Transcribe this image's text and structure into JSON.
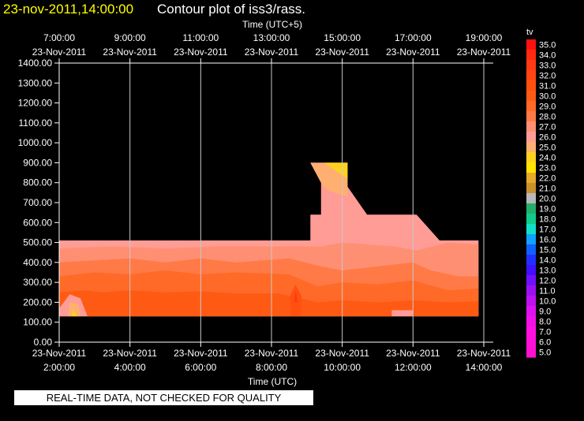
{
  "header": {
    "datetime": "23-nov-2011,14:00:00",
    "title": "Contour plot of iss3/rass."
  },
  "footer": {
    "notice": "REAL-TIME DATA, NOT CHECKED FOR QUALITY"
  },
  "colors": {
    "background": "#000000",
    "header_date": "#ffff00",
    "text": "#ffffff",
    "grid": "#c8c8c8"
  },
  "chart_data": {
    "type": "heatmap",
    "title": "Contour plot of iss3/rass.",
    "xlabel_top": "Time (UTC+5)",
    "xlabel": "Time (UTC)",
    "ylabel": "",
    "ylim": [
      0,
      1400
    ],
    "xlim_utc_hours": [
      2,
      14
    ],
    "y_ticks": [
      "0.00",
      "100.00",
      "200.00",
      "300.00",
      "400.00",
      "500.00",
      "600.00",
      "700.00",
      "800.00",
      "900.00",
      "1000.00",
      "1100.00",
      "1200.00",
      "1300.00",
      "1400.00"
    ],
    "x_ticks_bottom": [
      {
        "hour": 2,
        "date": "23-Nov-2011",
        "time": "2:00:00"
      },
      {
        "hour": 4,
        "date": "23-Nov-2011",
        "time": "4:00:00"
      },
      {
        "hour": 6,
        "date": "23-Nov-2011",
        "time": "6:00:00"
      },
      {
        "hour": 8,
        "date": "23-Nov-2011",
        "time": "8:00:00"
      },
      {
        "hour": 10,
        "date": "23-Nov-2011",
        "time": "10:00:00"
      },
      {
        "hour": 12,
        "date": "23-Nov-2011",
        "time": "12:00:00"
      },
      {
        "hour": 14,
        "date": "23-Nov-2011",
        "time": "14:00:00"
      }
    ],
    "x_ticks_top": [
      {
        "hour": 2,
        "time": "7:00:00",
        "date": "23-Nov-2011"
      },
      {
        "hour": 4,
        "time": "9:00:00",
        "date": "23-Nov-2011"
      },
      {
        "hour": 6,
        "time": "11:00:00",
        "date": "23-Nov-2011"
      },
      {
        "hour": 8,
        "time": "13:00:00",
        "date": "23-Nov-2011"
      },
      {
        "hour": 10,
        "time": "15:00:00",
        "date": "23-Nov-2011"
      },
      {
        "hour": 12,
        "time": "17:00:00",
        "date": "23-Nov-2011"
      },
      {
        "hour": 14,
        "time": "19:00:00",
        "date": "23-Nov-2011"
      }
    ],
    "legend": {
      "title": "tv",
      "placement": "right",
      "levels": [
        {
          "label": "35.0",
          "color": "#ff1010"
        },
        {
          "label": "34.0",
          "color": "#ff2a10"
        },
        {
          "label": "33.0",
          "color": "#ff3a12"
        },
        {
          "label": "32.0",
          "color": "#ff4612"
        },
        {
          "label": "31.0",
          "color": "#ff5012"
        },
        {
          "label": "30.0",
          "color": "#ff5a14"
        },
        {
          "label": "29.0",
          "color": "#ff6a28"
        },
        {
          "label": "28.0",
          "color": "#ff7a46"
        },
        {
          "label": "27.0",
          "color": "#ff8f72"
        },
        {
          "label": "26.0",
          "color": "#ff9c96"
        },
        {
          "label": "25.0",
          "color": "#ffb070"
        },
        {
          "label": "24.0",
          "color": "#ffd21e"
        },
        {
          "label": "23.0",
          "color": "#ffe400"
        },
        {
          "label": "22.0",
          "color": "#e8a82a"
        },
        {
          "label": "21.0",
          "color": "#c8922a"
        },
        {
          "label": "20.0",
          "color": "#b8b8b8"
        },
        {
          "label": "19.0",
          "color": "#22b06a"
        },
        {
          "label": "18.0",
          "color": "#10cc8c"
        },
        {
          "label": "17.0",
          "color": "#10e0c8"
        },
        {
          "label": "16.0",
          "color": "#10a0ff"
        },
        {
          "label": "15.0",
          "color": "#1060ff"
        },
        {
          "label": "14.0",
          "color": "#2030ff"
        },
        {
          "label": "13.0",
          "color": "#4010ff"
        },
        {
          "label": "12.0",
          "color": "#7010ff"
        },
        {
          "label": "11.0",
          "color": "#9a10f0"
        },
        {
          "label": "10.0",
          "color": "#c010f0"
        },
        {
          "label": "9.0",
          "color": "#e010f0"
        },
        {
          "label": "8.0",
          "color": "#f010e8"
        },
        {
          "label": "7.0",
          "color": "#ff10e0"
        },
        {
          "label": "6.0",
          "color": "#ff10d8"
        },
        {
          "label": "5.0",
          "color": "#ff10d0"
        }
      ]
    },
    "regions": [
      {
        "value": 26.0,
        "color": "#ff9c96",
        "points": [
          [
            2,
            510
          ],
          [
            9.1,
            510
          ],
          [
            9.1,
            640
          ],
          [
            9.4,
            640
          ],
          [
            9.4,
            800
          ],
          [
            9.1,
            900
          ],
          [
            10.15,
            900
          ],
          [
            10.15,
            780
          ],
          [
            10.7,
            640
          ],
          [
            12.1,
            640
          ],
          [
            12.75,
            510
          ],
          [
            13.85,
            510
          ],
          [
            13.85,
            130
          ],
          [
            2,
            130
          ]
        ]
      },
      {
        "value": 27.0,
        "color": "#ff8f72",
        "points": [
          [
            2,
            470
          ],
          [
            3.5,
            480
          ],
          [
            5,
            470
          ],
          [
            6.5,
            480
          ],
          [
            8.5,
            480
          ],
          [
            9.4,
            480
          ],
          [
            10,
            500
          ],
          [
            11.5,
            480
          ],
          [
            12.1,
            460
          ],
          [
            13,
            500
          ],
          [
            13.85,
            490
          ],
          [
            13.85,
            130
          ],
          [
            2,
            130
          ]
        ]
      },
      {
        "value": 28.0,
        "color": "#ff7a46",
        "points": [
          [
            2,
            400
          ],
          [
            3,
            410
          ],
          [
            4,
            420
          ],
          [
            5,
            400
          ],
          [
            6,
            420
          ],
          [
            7,
            400
          ],
          [
            8.5,
            420
          ],
          [
            9.4,
            380
          ],
          [
            10,
            360
          ],
          [
            11,
            380
          ],
          [
            12,
            400
          ],
          [
            12.5,
            360
          ],
          [
            13.3,
            330
          ],
          [
            13.85,
            330
          ],
          [
            13.85,
            130
          ],
          [
            2,
            130
          ]
        ]
      },
      {
        "value": 29.0,
        "color": "#ff6a28",
        "points": [
          [
            2,
            330
          ],
          [
            3,
            350
          ],
          [
            4,
            340
          ],
          [
            5,
            360
          ],
          [
            6,
            340
          ],
          [
            7,
            350
          ],
          [
            8.5,
            340
          ],
          [
            9.3,
            280
          ],
          [
            10,
            300
          ],
          [
            11,
            290
          ],
          [
            12,
            310
          ],
          [
            13,
            260
          ],
          [
            13.85,
            270
          ],
          [
            13.85,
            130
          ],
          [
            2,
            130
          ]
        ]
      },
      {
        "value": 30.0,
        "color": "#ff5a14",
        "points": [
          [
            2,
            250
          ],
          [
            2.8,
            260
          ],
          [
            3.2,
            250
          ],
          [
            4,
            260
          ],
          [
            5,
            250
          ],
          [
            6,
            255
          ],
          [
            7,
            245
          ],
          [
            8.2,
            245
          ],
          [
            9.3,
            200
          ],
          [
            10,
            210
          ],
          [
            11,
            200
          ],
          [
            12,
            210
          ],
          [
            13,
            200
          ],
          [
            13.85,
            205
          ],
          [
            13.85,
            130
          ],
          [
            2,
            130
          ]
        ]
      },
      {
        "value": 31.0,
        "color": "#ff5012",
        "points": [
          [
            8.55,
            130
          ],
          [
            8.52,
            230
          ],
          [
            8.68,
            290
          ],
          [
            8.85,
            230
          ],
          [
            8.82,
            130
          ]
        ]
      },
      {
        "value": 33.0,
        "color": "#ff3a12",
        "points": [
          [
            8.64,
            200
          ],
          [
            8.68,
            260
          ],
          [
            8.74,
            200
          ]
        ]
      },
      {
        "value": 26.0,
        "color": "#ff9c96",
        "points": [
          [
            11.4,
            130
          ],
          [
            11.4,
            160
          ],
          [
            12.0,
            160
          ],
          [
            12.0,
            130
          ]
        ]
      },
      {
        "value": 26.0,
        "color": "#ff9c96",
        "points": [
          [
            2,
            170
          ],
          [
            2.3,
            240
          ],
          [
            2.6,
            220
          ],
          [
            2.8,
            130
          ],
          [
            2,
            130
          ]
        ]
      },
      {
        "value": 25.0,
        "color": "#ffb070",
        "points": [
          [
            2.25,
            130
          ],
          [
            2.3,
            200
          ],
          [
            2.55,
            190
          ],
          [
            2.6,
            130
          ]
        ]
      },
      {
        "value": 24.0,
        "color": "#ffd21e",
        "points": [
          [
            2.35,
            130
          ],
          [
            2.4,
            165
          ],
          [
            2.5,
            130
          ]
        ]
      },
      {
        "value": 25.0,
        "color": "#ffb070",
        "points": [
          [
            9.1,
            900
          ],
          [
            10.15,
            900
          ],
          [
            10.15,
            730
          ],
          [
            9.6,
            760
          ],
          [
            9.4,
            800
          ]
        ]
      },
      {
        "value": 24.0,
        "color": "#ffd21e",
        "points": [
          [
            9.5,
            900
          ],
          [
            10.15,
            900
          ],
          [
            10.15,
            820
          ]
        ]
      }
    ]
  }
}
